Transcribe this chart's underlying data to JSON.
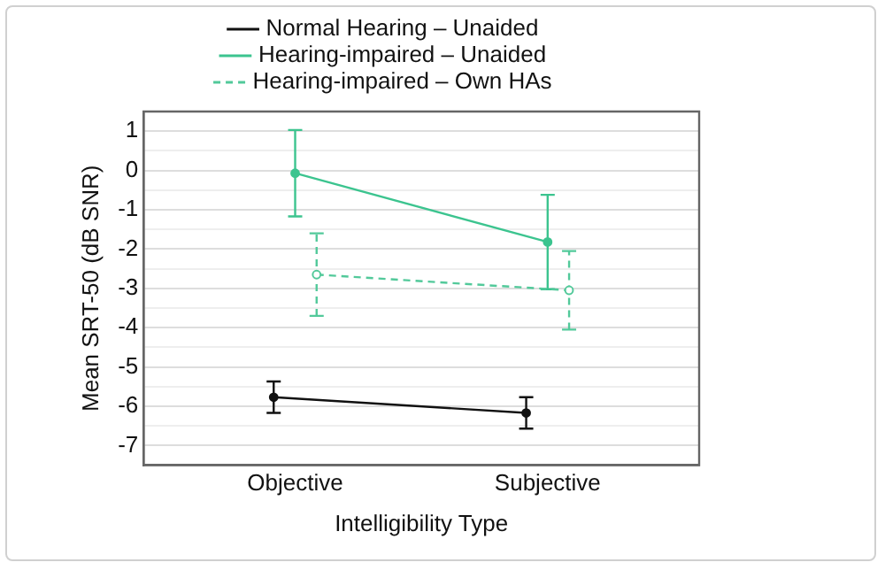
{
  "chart_data": {
    "type": "line",
    "xlabel": "Intelligibility Type",
    "ylabel": "Mean SRT-50 (dB SNR)",
    "categories": [
      "Objective",
      "Subjective"
    ],
    "series": [
      {
        "name": "Normal Hearing – Unaided",
        "color": "#111111",
        "values": [
          -5.77,
          -6.17
        ],
        "errors": [
          0.4,
          0.4
        ],
        "line_style": "solid",
        "marker": "circle"
      },
      {
        "name": "Hearing-impaired – Unaided",
        "color": "#3cc48f",
        "values": [
          -0.07,
          -1.82
        ],
        "errors": [
          1.1,
          1.2
        ],
        "line_style": "solid",
        "marker": "circle"
      },
      {
        "name": "Hearing-impaired – Own HAs",
        "color": "#52c99a",
        "values": [
          -2.65,
          -3.05
        ],
        "errors": [
          1.05,
          1.0
        ],
        "line_style": "dashed",
        "marker": "circle"
      }
    ],
    "ylim": [
      -7.5,
      1.5
    ],
    "yticks": [
      -7,
      {
        "value": -6.5,
        "label": null
      },
      -6,
      {
        "value": -5.5,
        "label": null
      },
      -5,
      {
        "value": -4.5,
        "label": null
      },
      -4,
      {
        "value": -3.5,
        "label": null
      },
      -3,
      {
        "value": -2.5,
        "label": null
      },
      -2,
      {
        "value": -1.5,
        "label": null
      },
      -1,
      {
        "value": -0.5,
        "label": null
      },
      0,
      {
        "value": 0.5,
        "label": null
      },
      1
    ],
    "grid": "y",
    "legend": "top"
  }
}
